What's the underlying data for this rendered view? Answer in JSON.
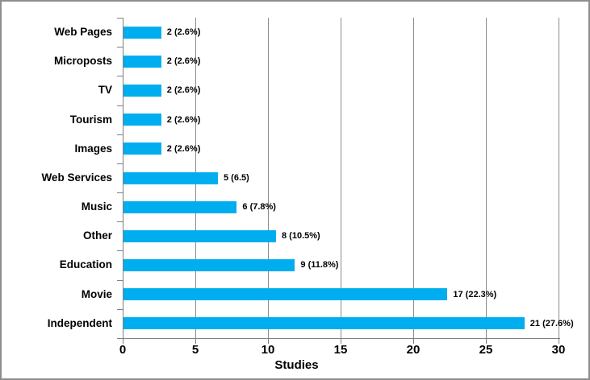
{
  "chart_data": {
    "type": "bar",
    "orientation": "horizontal",
    "title": "",
    "xlabel": "Studies",
    "ylabel": "",
    "xlim": [
      0,
      30
    ],
    "xticks": [
      0,
      5,
      10,
      15,
      20,
      25,
      30
    ],
    "grid": "vertical",
    "legend": "none",
    "bar_color": "#00AEEF",
    "gridline_color": "#8c8c8c",
    "axis_color": "#7f7f7f",
    "text_color": "#000000",
    "frame_color": "#8e8e8e",
    "categories": [
      "Web Pages",
      "Microposts",
      "TV",
      "Tourism",
      "Images",
      "Web Services",
      "Music",
      "Other",
      "Education",
      "Movie",
      "Independent"
    ],
    "counts": [
      2,
      2,
      2,
      2,
      2,
      5,
      6,
      8,
      9,
      17,
      21
    ],
    "bar_lengths_axis_units": [
      2.6,
      2.6,
      2.6,
      2.6,
      2.6,
      6.5,
      7.8,
      10.5,
      11.8,
      22.3,
      27.6
    ],
    "value_labels": [
      "2 (2.6%)",
      "2 (2.6%)",
      "2 (2.6%)",
      "2 (2.6%)",
      "2 (2.6%)",
      "5 (6.5)",
      "6 (7.8%)",
      "8 (10.5%)",
      "9 (11.8%)",
      "17 (22.3%)",
      "21 (27.6%)"
    ]
  }
}
